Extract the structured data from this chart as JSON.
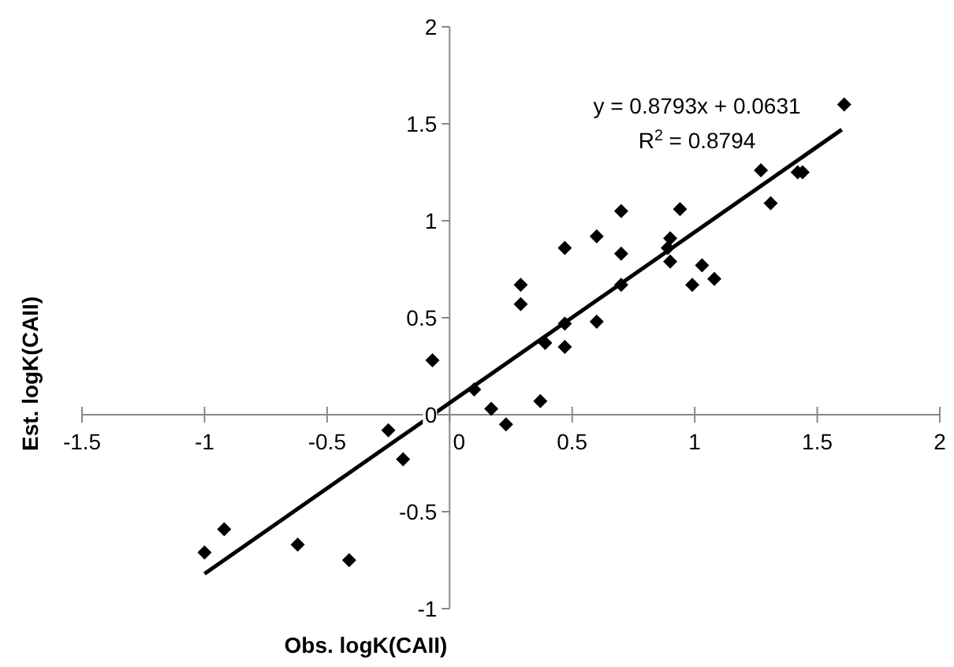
{
  "chart_data": {
    "type": "scatter",
    "xlabel": "Obs. logK(CAII)",
    "ylabel": "Est. logK(CAII)",
    "annotations": [
      "y = 0.8793x + 0.0631",
      "R$^{2}$ = 0.8794"
    ],
    "xlim": [
      -1.5,
      2
    ],
    "ylim": [
      -1,
      2
    ],
    "xticks": [
      -1.5,
      -1,
      -0.5,
      0,
      0.5,
      1,
      1.5,
      2
    ],
    "yticks": [
      -1,
      -0.5,
      0,
      0.5,
      1,
      1.5,
      2
    ],
    "grid": false,
    "series": [
      {
        "color": "#000000",
        "marker": "diamond",
        "x": [
          -1.0,
          -0.92,
          -0.62,
          -0.41,
          -0.25,
          -0.19,
          -0.07,
          0.1,
          0.17,
          0.23,
          0.29,
          0.29,
          0.37,
          0.39,
          0.47,
          0.47,
          0.47,
          0.6,
          0.6,
          0.7,
          0.7,
          0.7,
          0.9,
          0.89,
          0.9,
          0.94,
          1.03,
          0.99,
          1.08,
          1.27,
          1.31,
          1.42,
          1.44,
          1.61
        ],
        "values": [
          -0.71,
          -0.59,
          -0.67,
          -0.75,
          -0.08,
          -0.23,
          0.28,
          0.13,
          0.03,
          -0.05,
          0.67,
          0.57,
          0.07,
          0.37,
          0.86,
          0.47,
          0.35,
          0.92,
          0.48,
          1.05,
          0.83,
          0.67,
          0.91,
          0.86,
          0.79,
          1.06,
          0.77,
          0.67,
          0.7,
          1.26,
          1.09,
          1.25,
          1.25,
          1.6
        ]
      },
      {
        "type": "line",
        "color": "#000000",
        "marker": "none",
        "line_style": "solid",
        "x": [
          -1.0,
          1.6
        ],
        "values": [
          -0.82,
          1.47
        ]
      }
    ]
  }
}
